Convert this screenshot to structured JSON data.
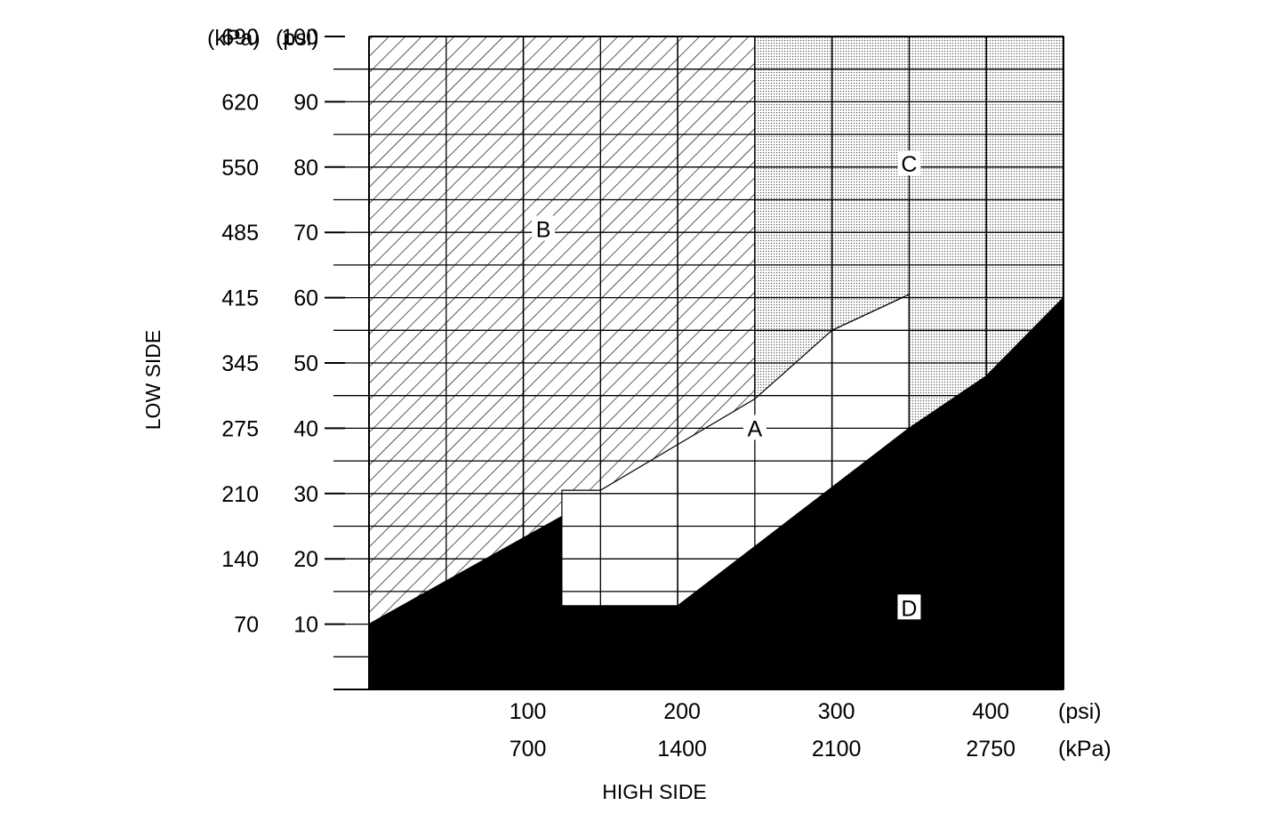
{
  "chart_data": {
    "type": "area",
    "x_axis": {
      "label": "HIGH SIDE",
      "range_psi": [
        0,
        450
      ],
      "ticks_psi": [
        100,
        200,
        300,
        400
      ],
      "tick_labels_psi": [
        "100",
        "200",
        "300",
        "400"
      ],
      "tick_labels_kpa": [
        "700",
        "1400",
        "2100",
        "2750"
      ],
      "unit_psi": "(psi)",
      "unit_kpa": "(kPa)"
    },
    "y_axis": {
      "label": "LOW SIDE",
      "range_psi": [
        0,
        100
      ],
      "ticks_psi": [
        10,
        20,
        30,
        40,
        50,
        60,
        70,
        80,
        90,
        100
      ],
      "tick_labels_psi": [
        "10",
        "20",
        "30",
        "40",
        "50",
        "60",
        "70",
        "80",
        "90",
        "100"
      ],
      "tick_labels_kpa": [
        "70",
        "140",
        "210",
        "275",
        "345",
        "415",
        "485",
        "550",
        "620",
        "690"
      ],
      "unit_psi": "(psi)",
      "unit_kpa": "(kPa)"
    },
    "grid": true,
    "regions": [
      {
        "label": "A",
        "fill": "white",
        "label_at": [
          250,
          40
        ],
        "boundary": [
          [
            125,
            12.8
          ],
          [
            125,
            30.5
          ],
          [
            200,
            42
          ],
          [
            300,
            55
          ],
          [
            350,
            60.5
          ],
          [
            350,
            40
          ],
          [
            200,
            12.8
          ]
        ]
      },
      {
        "label": "B",
        "fill": "hatched",
        "label_at": [
          113,
          70.5
        ],
        "boundary": [
          [
            0,
            10
          ],
          [
            0,
            100
          ],
          [
            250,
            100
          ],
          [
            250,
            44.5
          ],
          [
            150,
            30.5
          ],
          [
            125,
            30.5
          ],
          [
            125,
            26.5
          ]
        ]
      },
      {
        "label": "C",
        "fill": "stippled",
        "label_at": [
          350,
          80.5
        ],
        "boundary": [
          [
            250,
            44.5
          ],
          [
            250,
            100
          ],
          [
            450,
            100
          ],
          [
            450,
            60
          ],
          [
            400,
            48
          ],
          [
            350,
            40
          ],
          [
            350,
            60.5
          ],
          [
            300,
            55
          ]
        ]
      },
      {
        "label": "D",
        "fill": "#000000",
        "label_at": [
          350,
          12.5
        ],
        "boundary": [
          [
            0,
            0
          ],
          [
            0,
            10
          ],
          [
            125,
            26.5
          ],
          [
            125,
            12.8
          ],
          [
            200,
            12.8
          ],
          [
            350,
            40
          ],
          [
            400,
            48
          ],
          [
            450,
            60
          ],
          [
            450,
            0
          ]
        ]
      }
    ]
  }
}
